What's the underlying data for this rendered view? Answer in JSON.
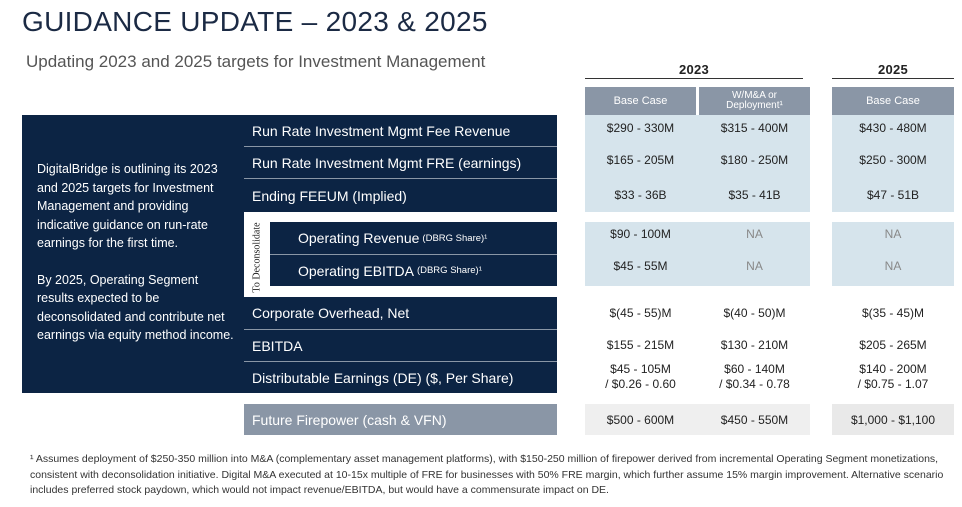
{
  "title": "GUIDANCE UPDATE – 2023 & 2025",
  "subtitle": "Updating 2023 and 2025 targets for Investment Management",
  "years": {
    "y2023": "2023",
    "y2025": "2025"
  },
  "columns": {
    "base_2023": "Base Case",
    "mna_2023_line1": "W/M&A or",
    "mna_2023_line2": "Deployment¹",
    "base_2025": "Base Case"
  },
  "left_panel": {
    "para1": "DigitalBridge is outlining its 2023 and 2025 targets for Investment Management and providing indicative guidance on run-rate earnings for the first time.",
    "para2": "By 2025, Operating Segment results expected to be deconsolidated and contribute net earnings via equity method income."
  },
  "deconsolidate_label": "To Deconsolidate",
  "rows": [
    {
      "label": "Run Rate Investment Mgmt Fee Revenue",
      "suffix": "",
      "c1": "$290 - 330M",
      "c2": "$315 - 400M",
      "c3": "$430 - 480M"
    },
    {
      "label": "Run Rate Investment Mgmt FRE (earnings)",
      "suffix": "",
      "c1": "$165 - 205M",
      "c2": "$180 - 250M",
      "c3": "$250 - 300M"
    },
    {
      "label": "Ending FEEUM (Implied)",
      "suffix": "",
      "c1": "$33 - 36B",
      "c2": "$35 - 41B",
      "c3": "$47 - 51B"
    },
    {
      "label": "Operating Revenue",
      "suffix": "(DBRG Share)¹",
      "c1": "$90 - 100M",
      "c2": "NA",
      "c3": "NA"
    },
    {
      "label": "Operating EBITDA",
      "suffix": "(DBRG Share)¹",
      "c1": "$45 - 55M",
      "c2": "NA",
      "c3": "NA"
    },
    {
      "label": "Corporate Overhead, Net",
      "suffix": "",
      "c1": "$(45 - 55)M",
      "c2": "$(40 - 50)M",
      "c3": "$(35 - 45)M"
    },
    {
      "label": "EBITDA",
      "suffix": "",
      "c1": "$155 - 215M",
      "c2": "$130 - 210M",
      "c3": "$205 - 265M"
    },
    {
      "label": "Distributable Earnings (DE) ($, Per Share)",
      "suffix": "",
      "c1": "$45 - 105M",
      "c1b": "/ $0.26 - 0.60",
      "c2": "$60 - 140M",
      "c2b": "/ $0.34 - 0.78",
      "c3": "$140 - 200M",
      "c3b": "/ $0.75 - 1.07"
    },
    {
      "label": "Future Firepower (cash & VFN)",
      "suffix": "",
      "c1": "$500 - 600M",
      "c2": "$450 - 550M",
      "c3": "$1,000 - $1,100"
    }
  ],
  "footnote": "¹ Assumes deployment of $250-350 million into M&A (complementary asset management platforms), with $150-250 million of firepower derived from incremental Operating Segment monetizations, consistent with deconsolidation initiative. Digital M&A executed at 10-15x multiple of FRE for businesses with 50% FRE margin, which further assume 15% margin improvement. Alternative scenario includes preferred stock paydown, which would not impact revenue/EBITDA, but would have a commensurate impact on DE.",
  "colors": {
    "navy": "#0c2444",
    "slate": "#8a96a6",
    "light_blue": "#d6e4ec",
    "light_grey": "#efefef"
  }
}
